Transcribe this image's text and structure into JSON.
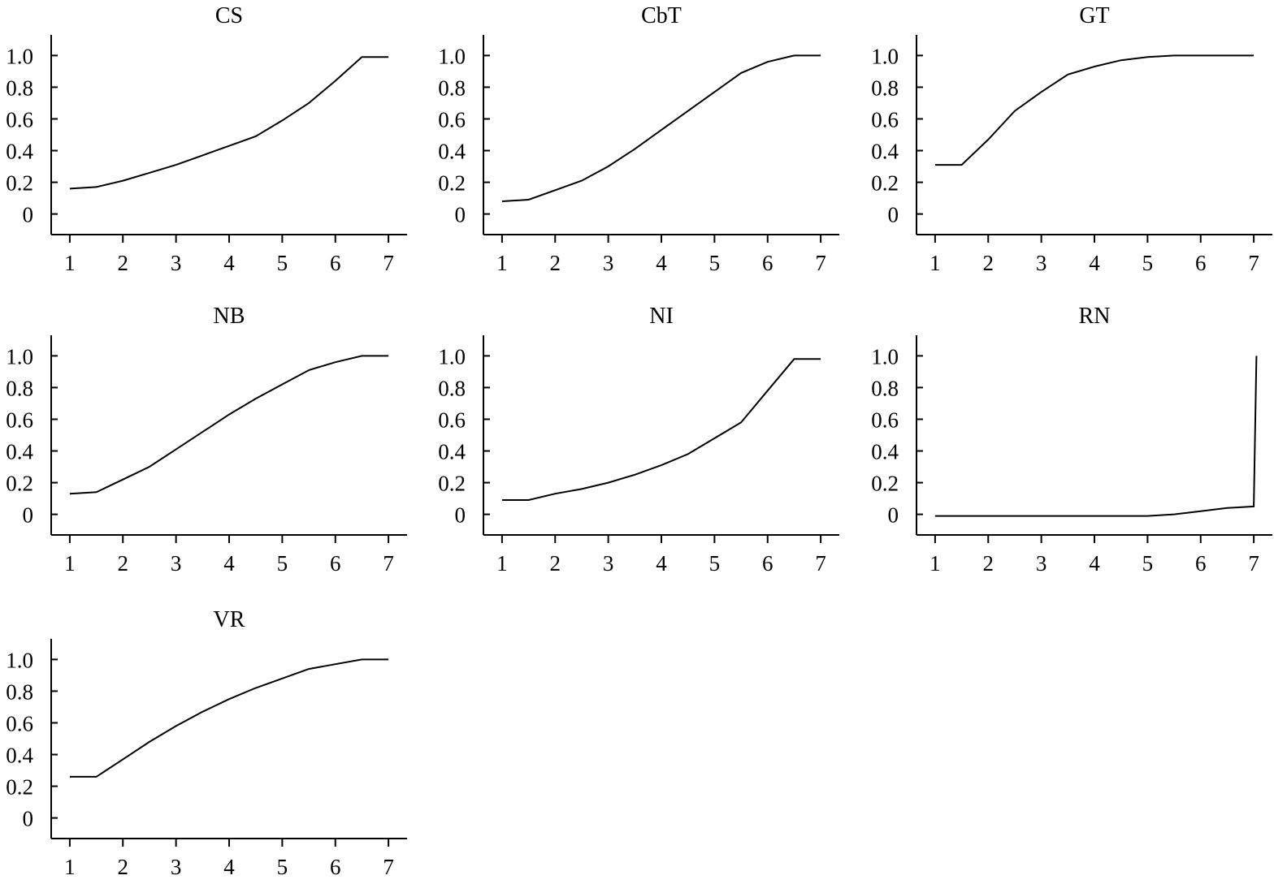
{
  "style": {
    "background": "#ffffff",
    "line_color": "#000000",
    "axis_color": "#000000"
  },
  "chart_data": [
    {
      "type": "line",
      "title": "CS",
      "x": [
        1,
        1.5,
        2,
        2.5,
        3,
        3.5,
        4,
        4.5,
        5,
        5.5,
        6,
        6.5,
        7
      ],
      "y": [
        0.16,
        0.17,
        0.21,
        0.26,
        0.31,
        0.37,
        0.43,
        0.49,
        0.59,
        0.7,
        0.84,
        0.99,
        0.99
      ],
      "xticks": [
        "1",
        "2",
        "3",
        "4",
        "5",
        "6",
        "7"
      ],
      "yticks": [
        "0",
        "0.2",
        "0.4",
        "0.6",
        "0.8",
        "1.0"
      ],
      "xlim": [
        0.65,
        7.35
      ],
      "ylim": [
        -0.13,
        1.13
      ],
      "grid": false,
      "legend": "none"
    },
    {
      "type": "line",
      "title": "CbT",
      "x": [
        1,
        1.5,
        2,
        2.5,
        3,
        3.5,
        4,
        4.5,
        5,
        5.5,
        6,
        6.5,
        7
      ],
      "y": [
        0.08,
        0.09,
        0.15,
        0.21,
        0.3,
        0.41,
        0.53,
        0.65,
        0.77,
        0.89,
        0.96,
        1.0,
        1.0
      ],
      "xticks": [
        "1",
        "2",
        "3",
        "4",
        "5",
        "6",
        "7"
      ],
      "yticks": [
        "0",
        "0.2",
        "0.4",
        "0.6",
        "0.8",
        "1.0"
      ],
      "xlim": [
        0.65,
        7.35
      ],
      "ylim": [
        -0.13,
        1.13
      ],
      "grid": false,
      "legend": "none"
    },
    {
      "type": "line",
      "title": "GT",
      "x": [
        1,
        1.5,
        2,
        2.5,
        3,
        3.5,
        4,
        4.5,
        5,
        5.5,
        6,
        6.5,
        7
      ],
      "y": [
        0.31,
        0.31,
        0.47,
        0.65,
        0.77,
        0.88,
        0.93,
        0.97,
        0.99,
        1.0,
        1.0,
        1.0,
        1.0
      ],
      "xticks": [
        "1",
        "2",
        "3",
        "4",
        "5",
        "6",
        "7"
      ],
      "yticks": [
        "0",
        "0.2",
        "0.4",
        "0.6",
        "0.8",
        "1.0"
      ],
      "xlim": [
        0.65,
        7.35
      ],
      "ylim": [
        -0.13,
        1.13
      ],
      "grid": false,
      "legend": "none"
    },
    {
      "type": "line",
      "title": "NB",
      "x": [
        1,
        1.5,
        2,
        2.5,
        3,
        3.5,
        4,
        4.5,
        5,
        5.5,
        6,
        6.5,
        7
      ],
      "y": [
        0.13,
        0.14,
        0.22,
        0.3,
        0.41,
        0.52,
        0.63,
        0.73,
        0.82,
        0.91,
        0.96,
        1.0,
        1.0
      ],
      "xticks": [
        "1",
        "2",
        "3",
        "4",
        "5",
        "6",
        "7"
      ],
      "yticks": [
        "0",
        "0.2",
        "0.4",
        "0.6",
        "0.8",
        "1.0"
      ],
      "xlim": [
        0.65,
        7.35
      ],
      "ylim": [
        -0.13,
        1.13
      ],
      "grid": false,
      "legend": "none"
    },
    {
      "type": "line",
      "title": "NI",
      "x": [
        1,
        1.5,
        2,
        2.5,
        3,
        3.5,
        4,
        4.5,
        5,
        5.5,
        6,
        6.5,
        7
      ],
      "y": [
        0.09,
        0.09,
        0.13,
        0.16,
        0.2,
        0.25,
        0.31,
        0.38,
        0.48,
        0.58,
        0.78,
        0.98,
        0.98
      ],
      "xticks": [
        "1",
        "2",
        "3",
        "4",
        "5",
        "6",
        "7"
      ],
      "yticks": [
        "0",
        "0.2",
        "0.4",
        "0.6",
        "0.8",
        "1.0"
      ],
      "xlim": [
        0.65,
        7.35
      ],
      "ylim": [
        -0.13,
        1.13
      ],
      "grid": false,
      "legend": "none"
    },
    {
      "type": "line",
      "title": "RN",
      "x": [
        1,
        1.5,
        2,
        2.5,
        3,
        3.5,
        4,
        4.5,
        5,
        5.5,
        6,
        6.5,
        7,
        7.05
      ],
      "y": [
        -0.01,
        -0.01,
        -0.01,
        -0.01,
        -0.01,
        -0.01,
        -0.01,
        -0.01,
        -0.01,
        0.0,
        0.02,
        0.04,
        0.05,
        1.0
      ],
      "xticks": [
        "1",
        "2",
        "3",
        "4",
        "5",
        "6",
        "7"
      ],
      "yticks": [
        "0",
        "0.2",
        "0.4",
        "0.6",
        "0.8",
        "1.0"
      ],
      "xlim": [
        0.65,
        7.35
      ],
      "ylim": [
        -0.13,
        1.13
      ],
      "grid": false,
      "legend": "none"
    },
    {
      "type": "line",
      "title": "VR",
      "x": [
        1,
        1.5,
        2,
        2.5,
        3,
        3.5,
        4,
        4.5,
        5,
        5.5,
        6,
        6.5,
        7
      ],
      "y": [
        0.26,
        0.26,
        0.37,
        0.48,
        0.58,
        0.67,
        0.75,
        0.82,
        0.88,
        0.94,
        0.97,
        1.0,
        1.0
      ],
      "xticks": [
        "1",
        "2",
        "3",
        "4",
        "5",
        "6",
        "7"
      ],
      "yticks": [
        "0",
        "0.2",
        "0.4",
        "0.6",
        "0.8",
        "1.0"
      ],
      "xlim": [
        0.65,
        7.35
      ],
      "ylim": [
        -0.13,
        1.13
      ],
      "grid": false,
      "legend": "none"
    }
  ]
}
